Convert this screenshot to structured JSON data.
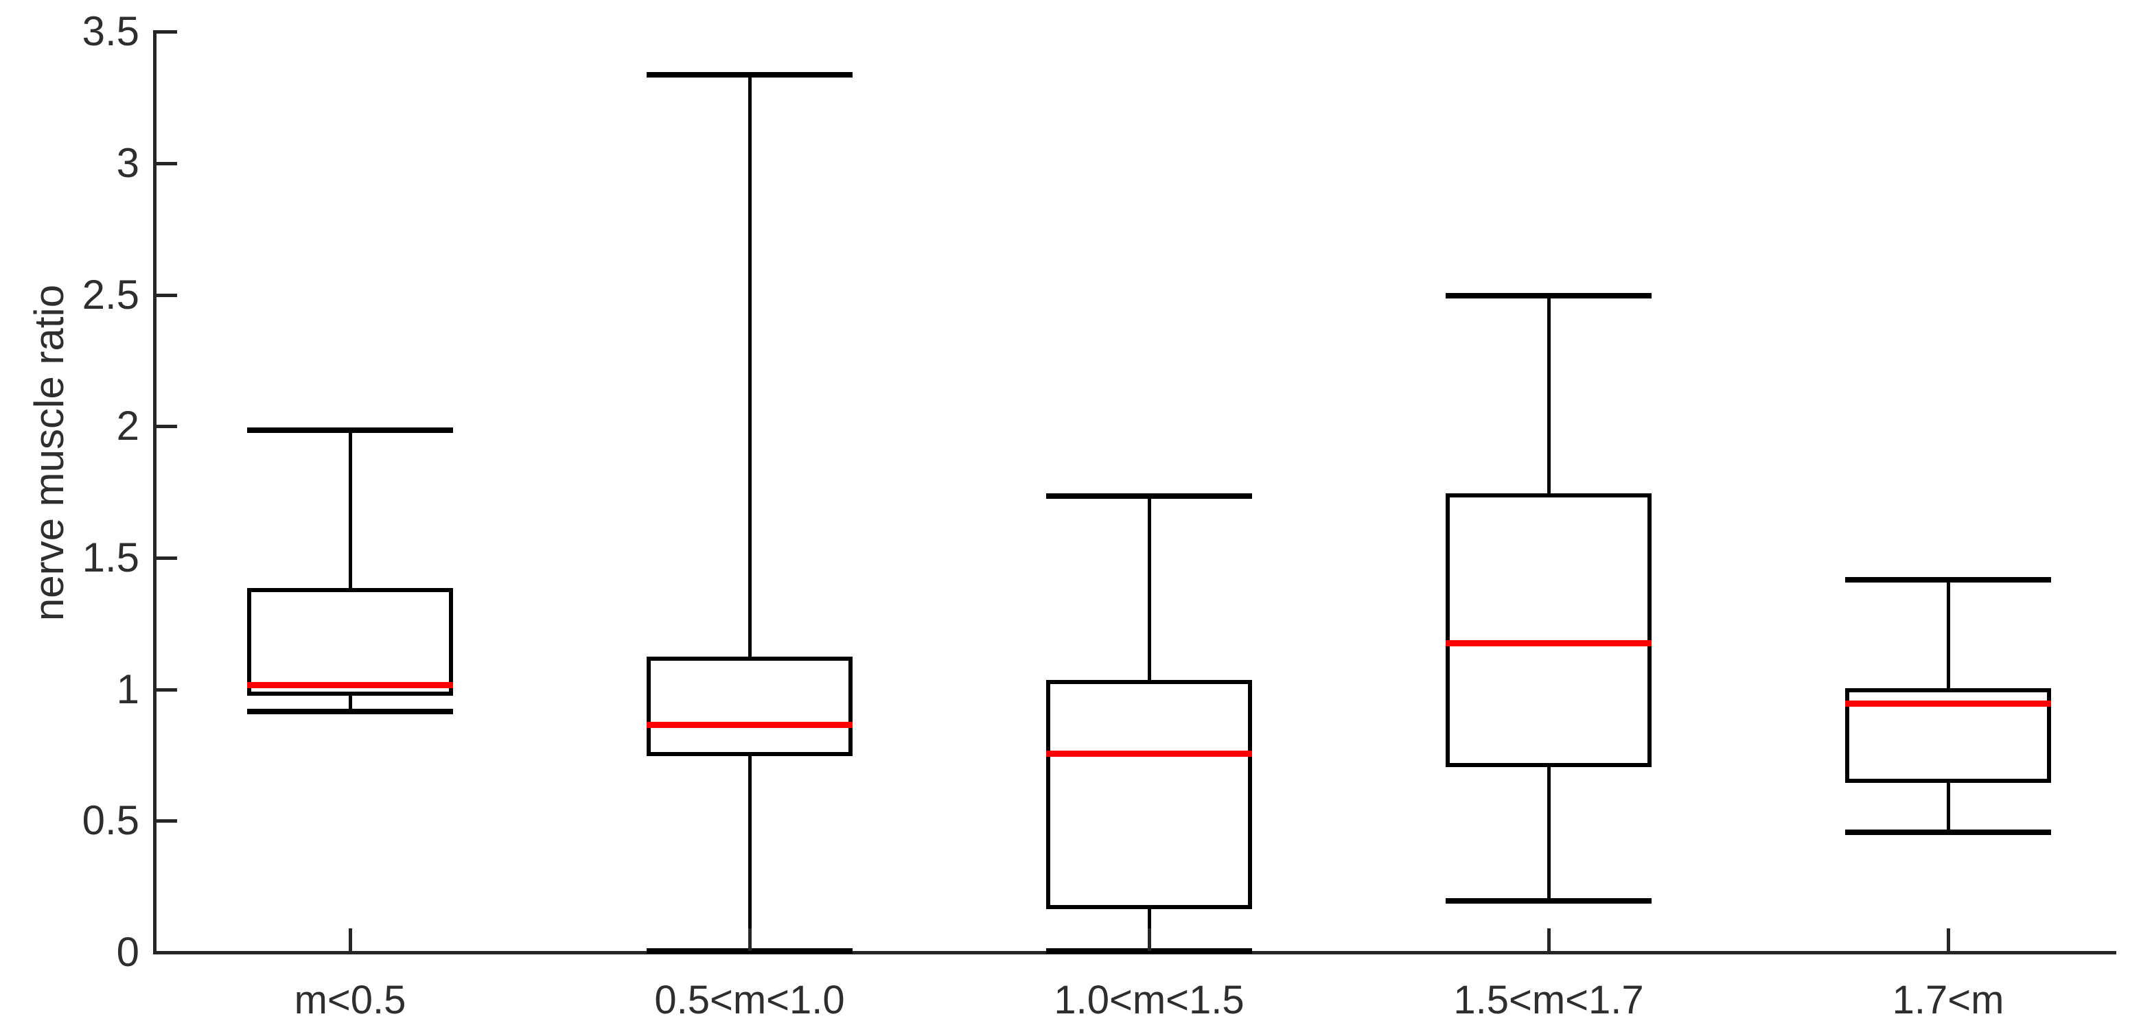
{
  "chart_data": {
    "type": "boxplot",
    "title": "",
    "xlabel": "",
    "ylabel": "nerve muscle ratio",
    "ylim": [
      0,
      3.5
    ],
    "yticks": [
      "0",
      "0.5",
      "1",
      "1.5",
      "2",
      "2.5",
      "3",
      "3.5"
    ],
    "ytick_values": [
      0,
      0.5,
      1,
      1.5,
      2,
      2.5,
      3,
      3.5
    ],
    "grid": false,
    "legend": "none",
    "categories": [
      "m<0.5",
      "0.5<m<1.0",
      "1.0<m<1.5",
      "1.5<m<1.7",
      "1.7<m"
    ],
    "series": [
      {
        "category": "m<0.5",
        "whisker_low": 0.91,
        "q1": 0.97,
        "median": 1.01,
        "q3": 1.38,
        "whisker_high": 1.98
      },
      {
        "category": "0.5<m<1.0",
        "whisker_low": 0.0,
        "q1": 0.74,
        "median": 0.86,
        "q3": 1.12,
        "whisker_high": 3.33
      },
      {
        "category": "1.0<m<1.5",
        "whisker_low": 0.0,
        "q1": 0.16,
        "median": 0.75,
        "q3": 1.03,
        "whisker_high": 1.73
      },
      {
        "category": "1.5<m<1.7",
        "whisker_low": 0.19,
        "q1": 0.7,
        "median": 1.17,
        "q3": 1.74,
        "whisker_high": 2.49
      },
      {
        "category": "1.7<m",
        "whisker_low": 0.45,
        "q1": 0.64,
        "median": 0.94,
        "q3": 1.0,
        "whisker_high": 1.41
      }
    ],
    "colors": {
      "background": "#ffffff",
      "box_border": "#000000",
      "whisker": "#000000",
      "median": "#ff0000",
      "axis": "#262626",
      "text": "#2e2e2e"
    }
  }
}
